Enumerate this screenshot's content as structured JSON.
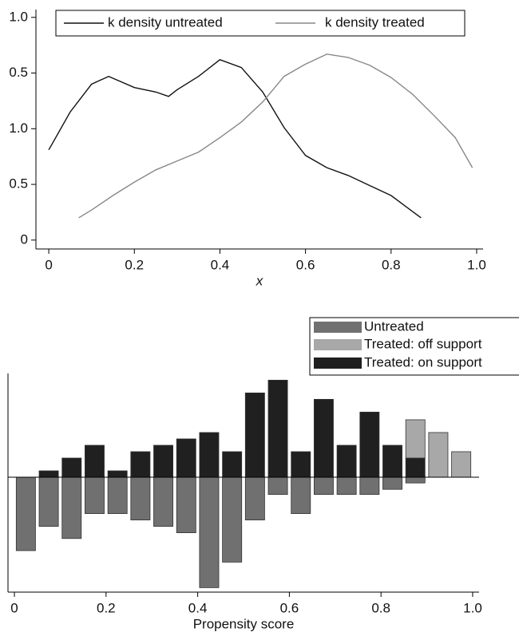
{
  "chart_data": [
    {
      "type": "line",
      "xlabel": "x",
      "xlim": [
        -0.03,
        1.015
      ],
      "ylim": [
        -0.08,
        2.07
      ],
      "xticks": [
        0,
        0.2,
        0.4,
        0.6,
        0.8,
        {
          "value": 1,
          "label": "1.0"
        }
      ],
      "yticks": [
        0,
        0.5,
        {
          "value": 1,
          "label": "1.0"
        },
        {
          "value": 1.5,
          "label": "0.5"
        },
        {
          "value": 2,
          "label": "1.0"
        }
      ],
      "series": [
        {
          "name": "k density untreated",
          "color": "#111111",
          "x": [
            0,
            0.05,
            0.1,
            0.14,
            0.2,
            0.25,
            0.28,
            0.3,
            0.35,
            0.4,
            0.45,
            0.5,
            0.55,
            0.6,
            0.65,
            0.7,
            0.75,
            0.8,
            0.87
          ],
          "values": [
            0.81,
            1.15,
            1.4,
            1.47,
            1.37,
            1.33,
            1.29,
            1.35,
            1.47,
            1.62,
            1.55,
            1.33,
            1.01,
            0.76,
            0.65,
            0.58,
            0.49,
            0.4,
            0.2
          ]
        },
        {
          "name": "k density treated",
          "color": "#888888",
          "x": [
            0.07,
            0.1,
            0.15,
            0.2,
            0.25,
            0.3,
            0.35,
            0.4,
            0.45,
            0.5,
            0.55,
            0.6,
            0.65,
            0.7,
            0.75,
            0.8,
            0.85,
            0.9,
            0.95,
            0.99
          ],
          "values": [
            0.2,
            0.27,
            0.4,
            0.52,
            0.63,
            0.71,
            0.79,
            0.92,
            1.06,
            1.24,
            1.47,
            1.58,
            1.67,
            1.64,
            1.57,
            1.46,
            1.31,
            1.12,
            0.92,
            0.65
          ]
        }
      ]
    },
    {
      "type": "histogram",
      "xlabel": "Propensity score",
      "xlim": [
        -0.014,
        1.014
      ],
      "ylim": [
        -18,
        16.25
      ],
      "xticks": [
        0,
        0.2,
        0.4,
        0.6,
        0.8,
        {
          "value": 1,
          "label": "1.0"
        }
      ],
      "bins": [
        0,
        0.05,
        0.1,
        0.15,
        0.2,
        0.25,
        0.3,
        0.35,
        0.4,
        0.45,
        0.5,
        0.55,
        0.6,
        0.65,
        0.7,
        0.75,
        0.8,
        0.85,
        0.9,
        0.95,
        1
      ],
      "series": [
        {
          "name": "Untreated",
          "color": "#707070",
          "values": [
            -11.5,
            -7.7,
            -9.6,
            -5.7,
            -5.7,
            -6.7,
            -7.7,
            -8.7,
            -17.3,
            -13.3,
            -6.7,
            -2.7,
            -5.7,
            -2.7,
            -2.7,
            -2.7,
            -1.9,
            -0.9,
            0,
            0
          ]
        },
        {
          "name": "Treated: off support",
          "color": "#a8a8a8",
          "values": [
            0,
            0,
            0,
            0,
            0,
            0,
            0,
            0,
            0,
            0,
            0,
            0,
            0,
            0,
            0,
            0,
            0,
            6,
            7,
            4
          ]
        },
        {
          "name": "Treated: on support",
          "color": "#202020",
          "values": [
            0,
            1,
            3,
            5,
            1,
            4,
            5,
            6,
            7,
            4,
            13.2,
            15.2,
            4,
            12.2,
            5,
            10.2,
            5,
            3,
            0,
            0
          ]
        }
      ]
    }
  ]
}
